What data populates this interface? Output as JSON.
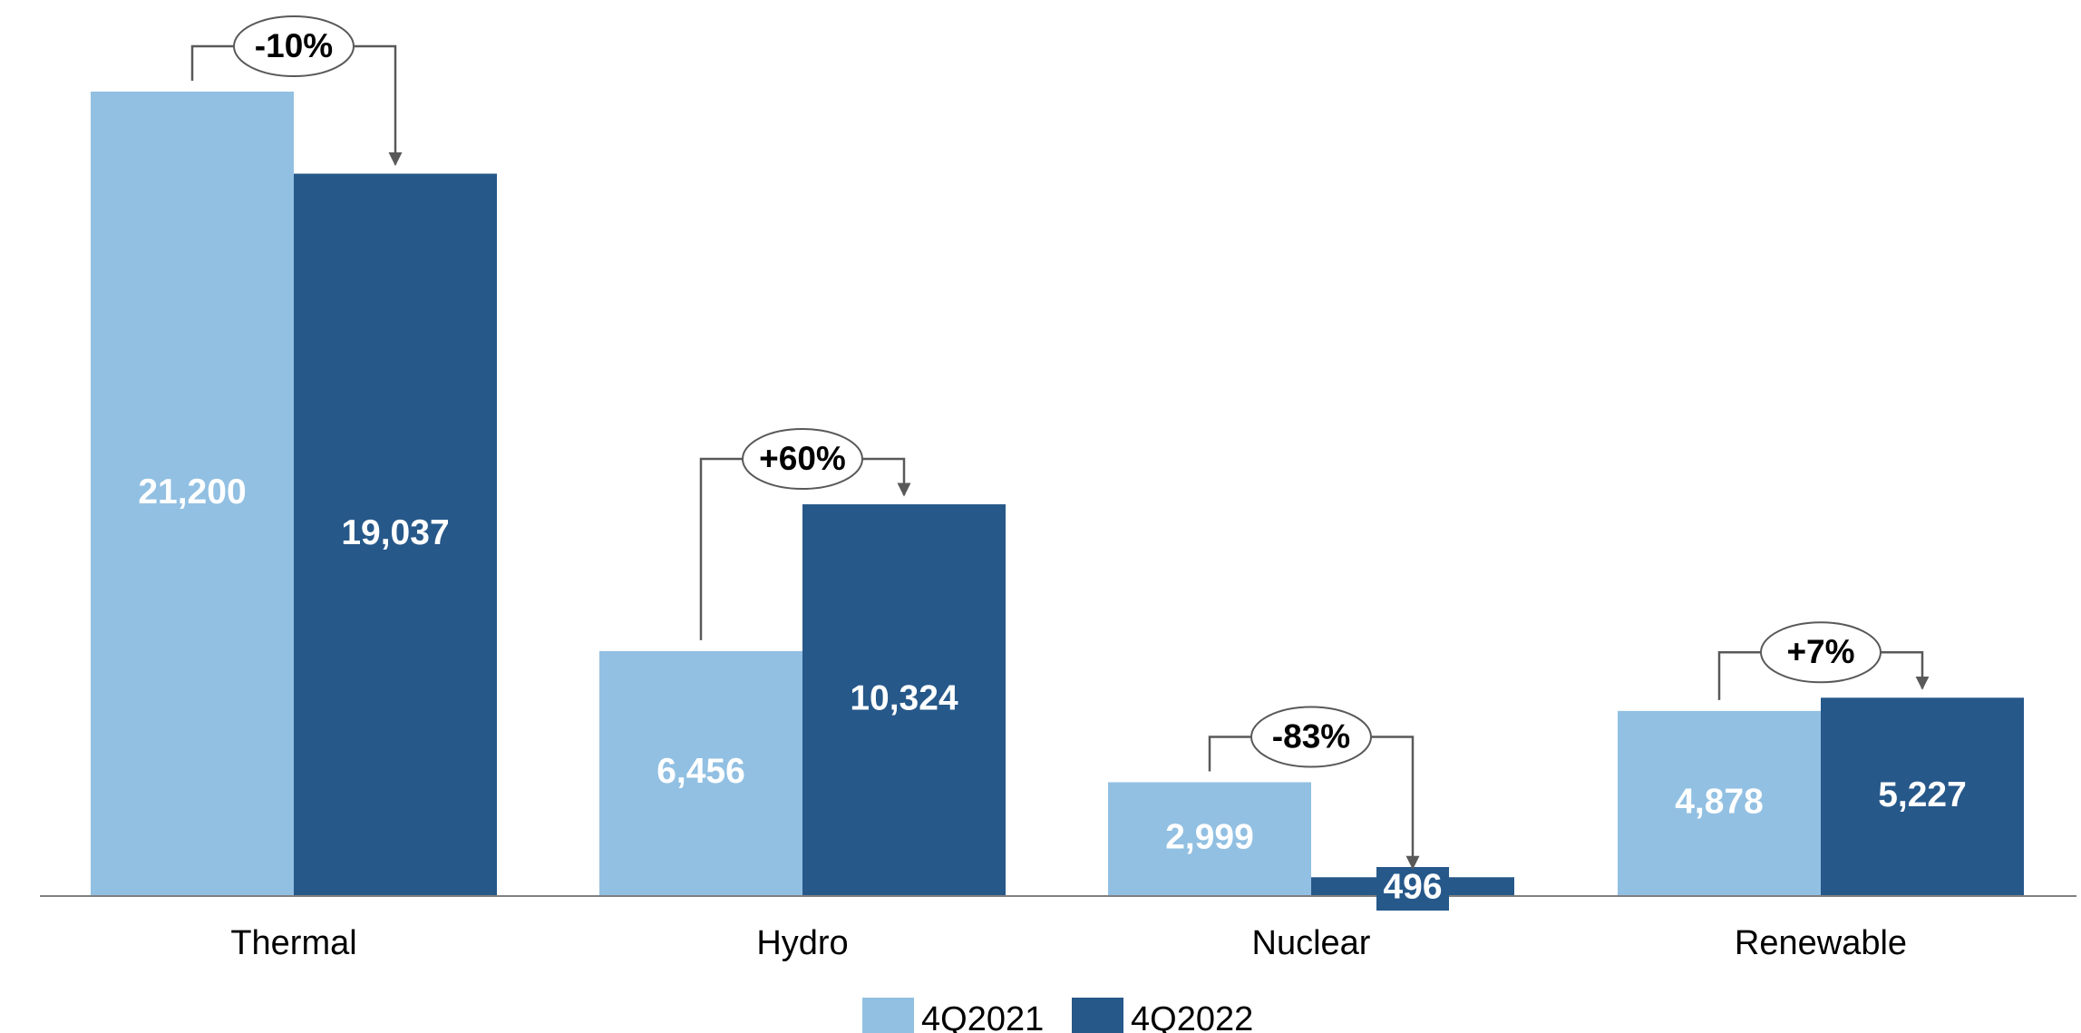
{
  "chart_data": {
    "type": "bar",
    "categories": [
      "Thermal",
      "Hydro",
      "Nuclear",
      "Renewable"
    ],
    "series": [
      {
        "name": "4Q2021",
        "values": [
          21200,
          6456,
          2999,
          4878
        ],
        "labels": [
          "21,200",
          "6,456",
          "2,999",
          "4,878"
        ],
        "color": "#92c0e2"
      },
      {
        "name": "4Q2022",
        "values": [
          19037,
          10324,
          496,
          5227
        ],
        "labels": [
          "19,037",
          "10,324",
          "496",
          "5,227"
        ],
        "color": "#26588a"
      }
    ],
    "changes": [
      "-10%",
      "+60%",
      "-83%",
      "+7%"
    ],
    "ylim": [
      0,
      22000
    ],
    "grid": false,
    "legend_position": "bottom",
    "axis_color": "#808080",
    "connector_color": "#595959"
  }
}
